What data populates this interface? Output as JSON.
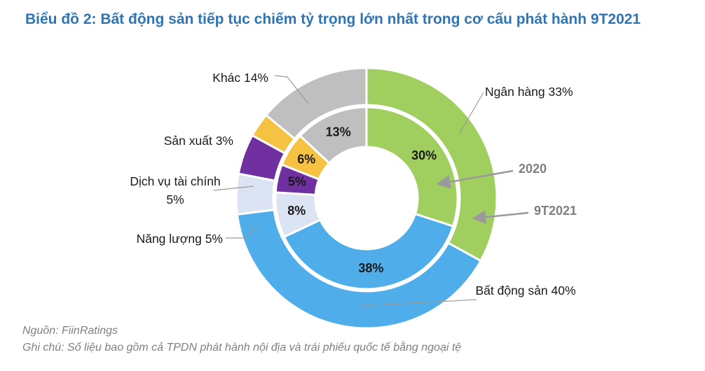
{
  "chart_data": {
    "type": "donut",
    "title": "Biểu đồ 2: Bất động sản tiếp tục chiếm tỷ trọng lớn nhất trong cơ cấu phát hành 9T2021",
    "categories": [
      "Ngân hàng",
      "Bất động sản",
      "Năng lượng",
      "Dịch vụ tài chính",
      "Sản xuất",
      "Khác"
    ],
    "colors": [
      "#a0cf5f",
      "#4fadea",
      "#dce3f2",
      "#7030a0",
      "#f5c242",
      "#bfbfbf"
    ],
    "series": [
      {
        "name": "2020",
        "values": [
          30,
          38,
          8,
          5,
          6,
          13
        ],
        "value_labels": [
          "30%",
          "38%",
          "8%",
          "5%",
          "6%",
          "13%"
        ]
      },
      {
        "name": "9T2021",
        "values": [
          33,
          40,
          5,
          5,
          3,
          14
        ],
        "value_labels": [
          "33%",
          "40%",
          "5%",
          "5%",
          "3%",
          "14%"
        ]
      }
    ]
  },
  "source": "Nguồn: FiinRatings",
  "note": "Ghi chú: Số liệu bao gồm cả TPDN phát hành nội địa và trái phiếu quốc tế bằng ngoại tệ"
}
